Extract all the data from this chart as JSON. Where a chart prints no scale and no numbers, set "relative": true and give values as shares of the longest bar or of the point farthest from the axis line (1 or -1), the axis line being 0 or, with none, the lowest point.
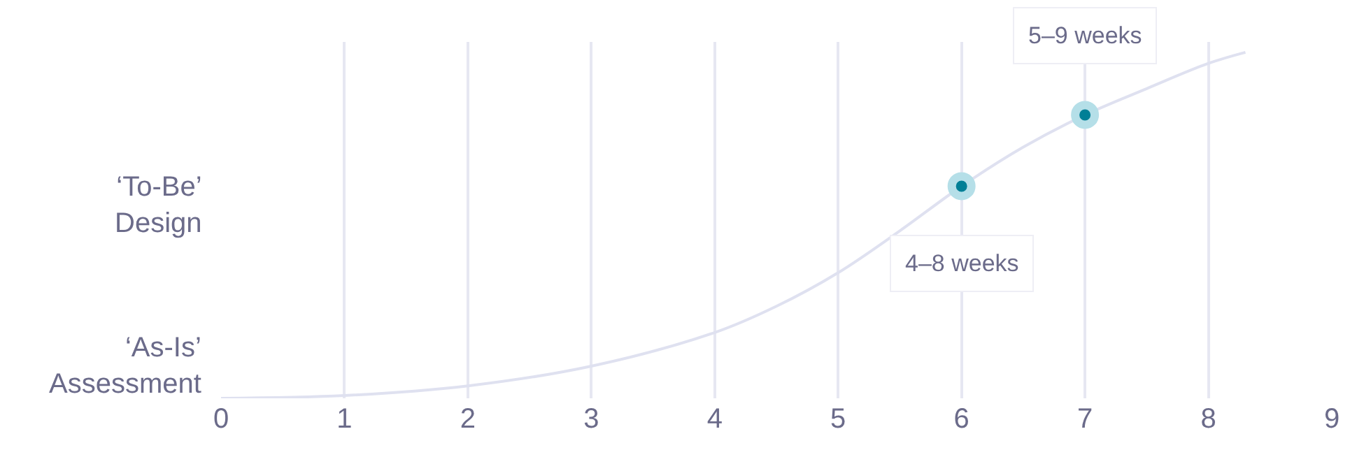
{
  "chart_data": {
    "type": "line",
    "relative": true,
    "xlim": [
      0,
      9
    ],
    "xticks": [
      0,
      1,
      2,
      3,
      4,
      5,
      6,
      7,
      8,
      9
    ],
    "grid": "x",
    "series": [
      {
        "color": "#dfe1f0",
        "x": [
          0,
          1,
          2,
          3,
          4,
          4.5,
          5,
          5.5,
          6,
          6.5,
          7,
          7.5,
          8,
          8.3
        ],
        "values": [
          0,
          0.008,
          0.036,
          0.093,
          0.19,
          0.266,
          0.363,
          0.484,
          0.613,
          0.726,
          0.819,
          0.895,
          0.968,
          1
        ]
      },
      {
        "type": "scatter",
        "color": "#007f96",
        "marker": "circle",
        "x": [
          6,
          7
        ],
        "values": [
          0.613,
          0.819
        ]
      }
    ],
    "annotations": [
      "‘As-Is’\nAssessment",
      "‘To-Be’\nDesign",
      {
        "text": "4–8 weeks",
        "x": 6,
        "y": 0.613
      },
      {
        "text": "5–9 weeks",
        "x": 7,
        "y": 0.819
      }
    ]
  }
}
